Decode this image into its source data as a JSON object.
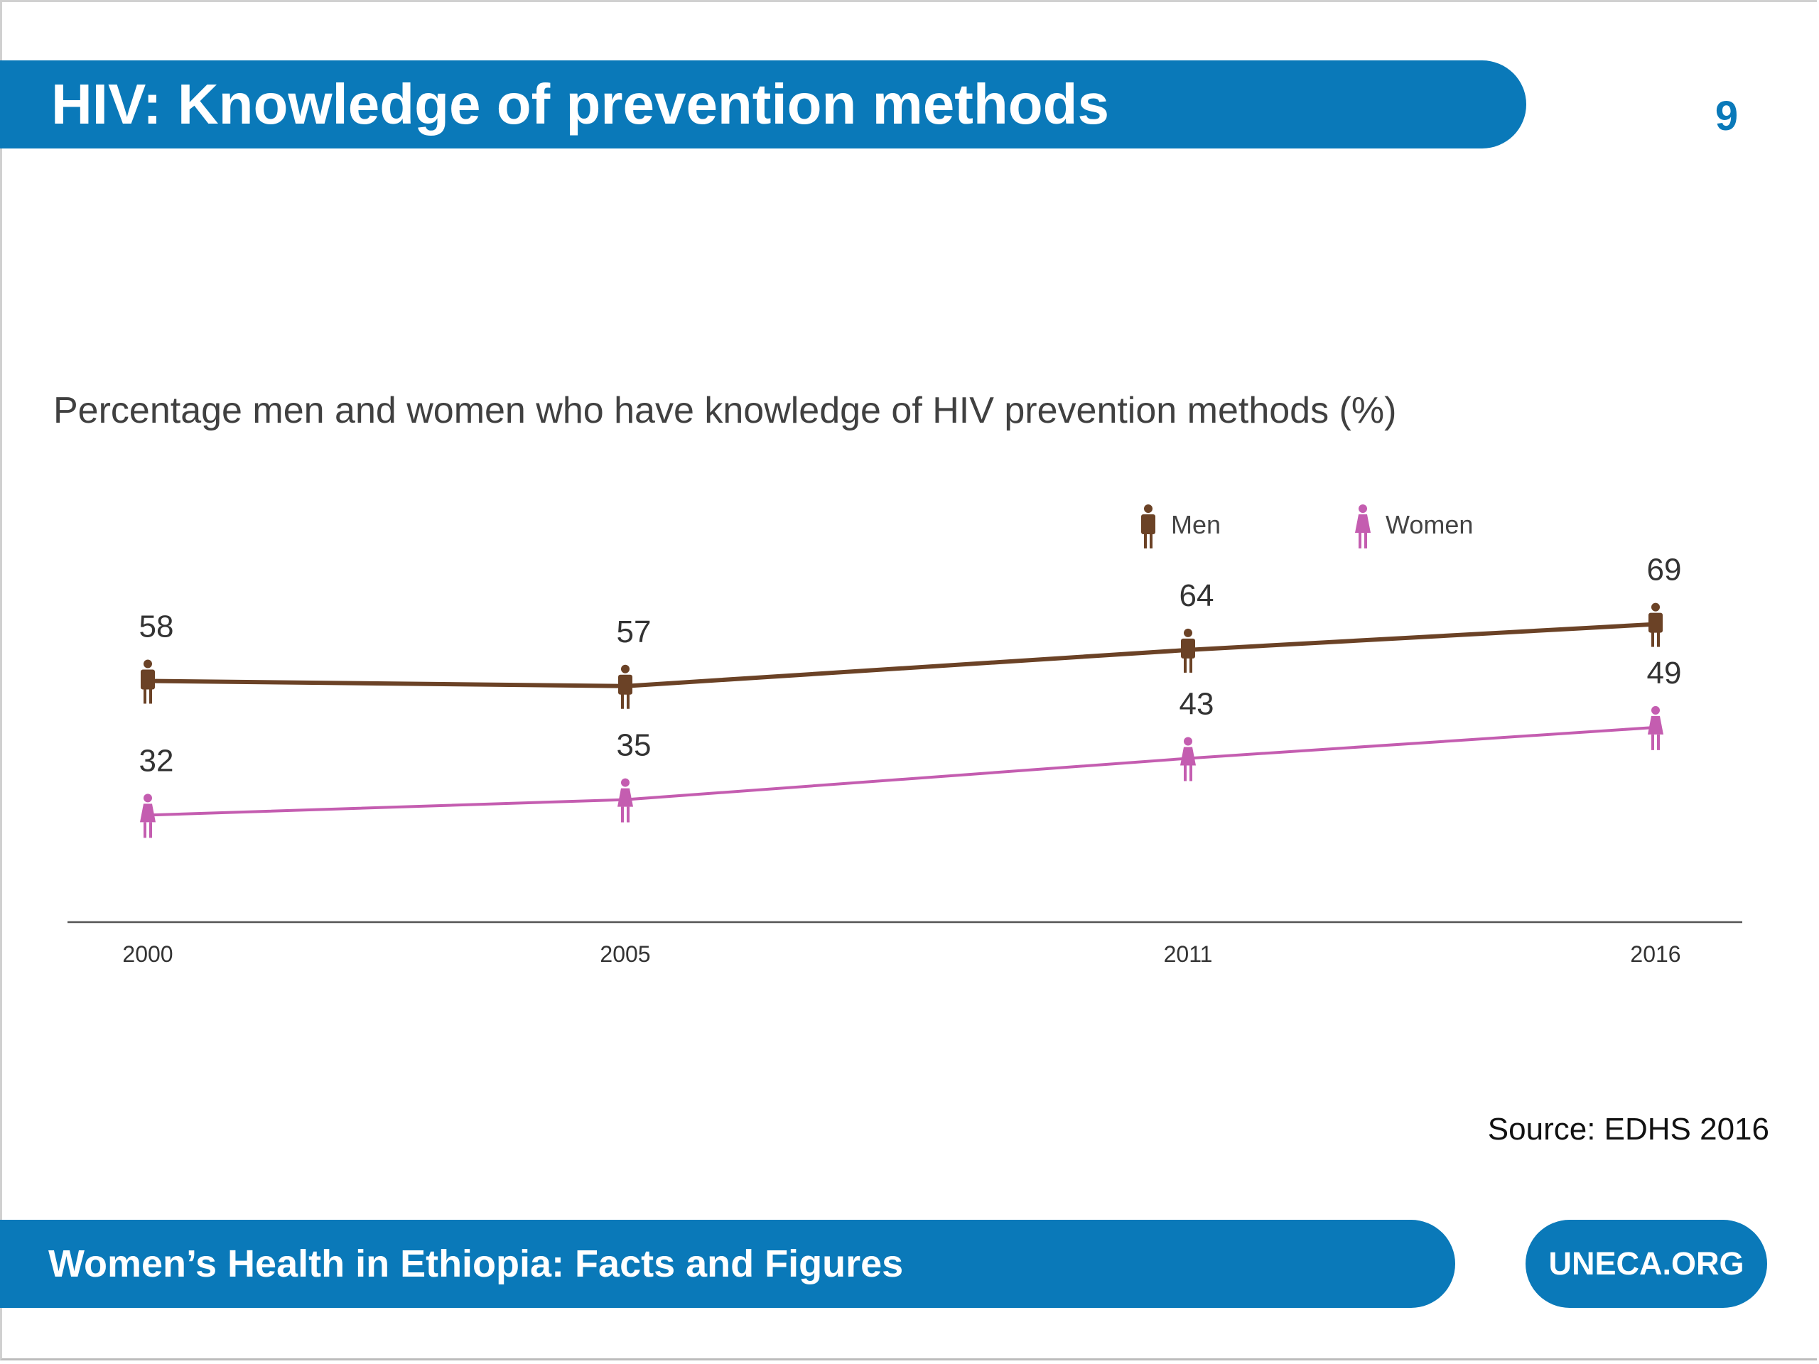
{
  "header": {
    "title": "HIV: Knowledge of prevention methods",
    "page_number": "9"
  },
  "source_note": "Source: EDHS 2016",
  "footer": {
    "title": "Women’s Health in Ethiopia: Facts and Figures",
    "link_label": "UNECA.ORG"
  },
  "colors": {
    "brand_blue": "#0a79b9",
    "men": "#6b4226",
    "women": "#c45db0",
    "axis": "#555555"
  },
  "chart_data": {
    "type": "line",
    "title": "Percentage men and women who have knowledge of HIV prevention methods (%)",
    "x": [
      "2000",
      "2005",
      "2011",
      "2016"
    ],
    "series": [
      {
        "name": "Men",
        "values": [
          58,
          57,
          64,
          69
        ],
        "icon": "man-icon"
      },
      {
        "name": "Women",
        "values": [
          32,
          35,
          43,
          49
        ],
        "icon": "woman-icon"
      }
    ],
    "ylim": [
      22,
      75
    ],
    "grid": false,
    "legend_position": "top-right"
  }
}
